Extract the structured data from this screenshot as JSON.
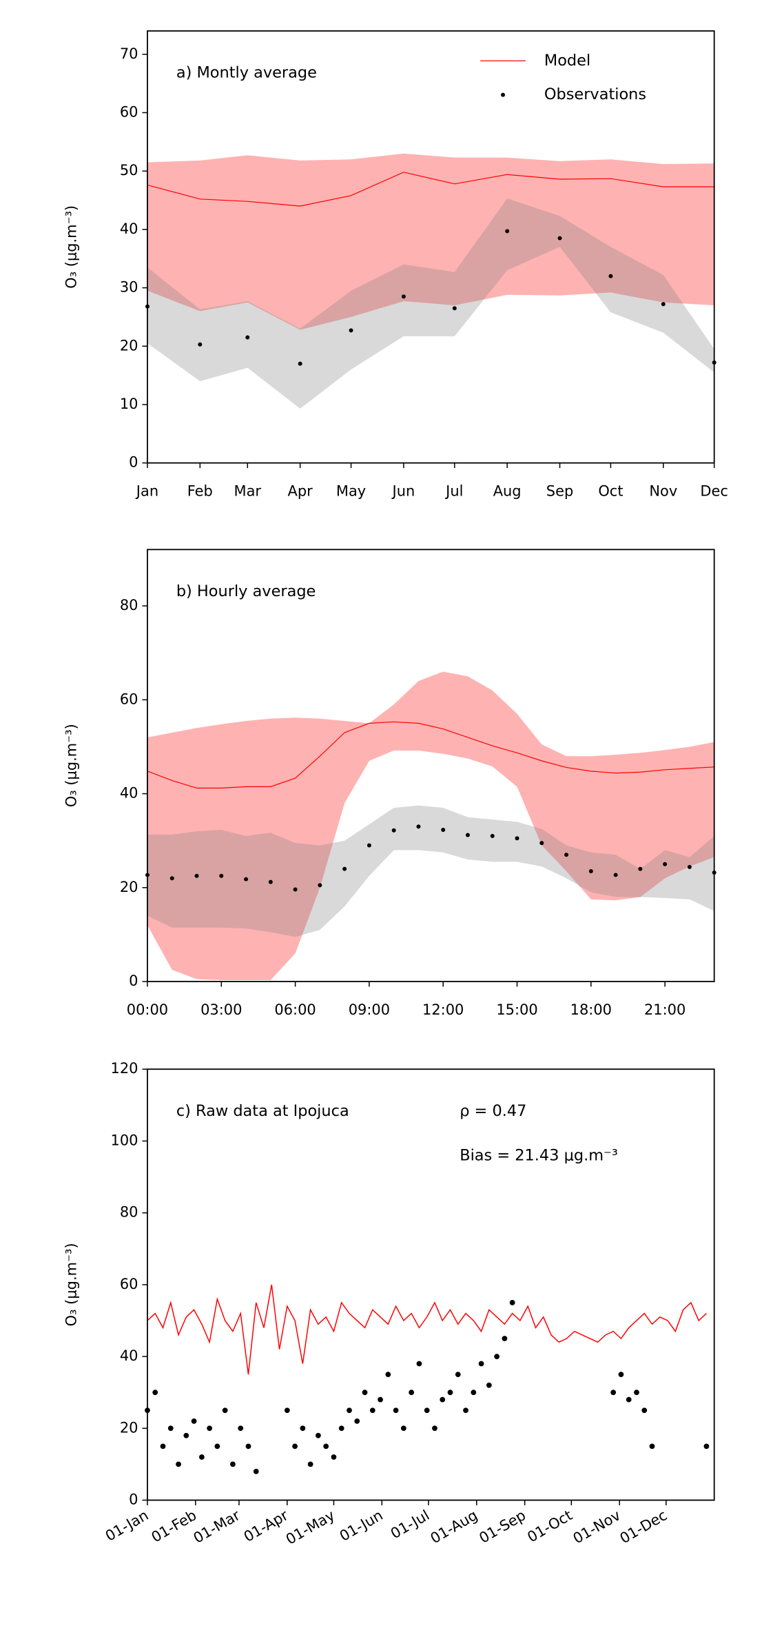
{
  "chart_data": [
    {
      "type": "line",
      "annotation": "a) Montly average",
      "ylabel": "O₃ (μg.m⁻³)",
      "categories": [
        "Jan",
        "Feb",
        "Mar",
        "Apr",
        "May",
        "Jun",
        "Jul",
        "Aug",
        "Sep",
        "Oct",
        "Nov",
        "Dec"
      ],
      "ylim": [
        0,
        74
      ],
      "yticks": [
        0,
        10,
        20,
        30,
        40,
        50,
        60,
        70
      ],
      "legend": "upper right",
      "series": [
        {
          "name": "Model",
          "type": "line",
          "color": "#ff0000",
          "band_color": "#ff0000",
          "values": [
            47.6,
            45.2,
            44.8,
            44.0,
            45.8,
            49.8,
            47.8,
            49.4,
            48.6,
            48.7,
            47.3,
            47.3
          ],
          "upper": [
            51.5,
            51.8,
            52.7,
            51.8,
            52.0,
            53.0,
            52.3,
            52.3,
            51.7,
            52.0,
            51.2,
            51.3
          ],
          "lower": [
            29.5,
            26.0,
            27.5,
            22.8,
            25.0,
            27.7,
            27.0,
            28.8,
            28.7,
            29.2,
            27.5,
            27.0
          ]
        },
        {
          "name": "Observations",
          "type": "scatter",
          "color": "#000000",
          "band_color": "#808080",
          "values": [
            26.8,
            20.3,
            21.5,
            17.0,
            22.7,
            28.5,
            26.5,
            39.7,
            38.5,
            32.0,
            27.2,
            17.2
          ],
          "upper": [
            33.5,
            26.3,
            27.7,
            23.0,
            29.5,
            34.0,
            32.7,
            45.3,
            42.3,
            37.0,
            32.2,
            19.5
          ],
          "lower": [
            20.5,
            14.0,
            16.3,
            9.3,
            16.0,
            21.7,
            21.7,
            33.0,
            37.0,
            25.8,
            22.3,
            15.5
          ]
        }
      ]
    },
    {
      "type": "line",
      "annotation": "b) Hourly average",
      "ylabel": "O₃ (μg.m⁻³)",
      "x": [
        0,
        1,
        2,
        3,
        4,
        5,
        6,
        7,
        8,
        9,
        10,
        11,
        12,
        13,
        14,
        15,
        16,
        17,
        18,
        19,
        20,
        21,
        22,
        23
      ],
      "xlim": [
        0,
        23
      ],
      "xticks": [
        {
          "value": 0,
          "label": "00:00"
        },
        {
          "value": 3,
          "label": "03:00"
        },
        {
          "value": 6,
          "label": "06:00"
        },
        {
          "value": 9,
          "label": "09:00"
        },
        {
          "value": 12,
          "label": "12:00"
        },
        {
          "value": 15,
          "label": "15:00"
        },
        {
          "value": 18,
          "label": "18:00"
        },
        {
          "value": 21,
          "label": "21:00"
        }
      ],
      "ylim": [
        0,
        92
      ],
      "yticks": [
        0,
        20,
        40,
        60,
        80
      ],
      "series": [
        {
          "name": "Model",
          "type": "line",
          "color": "#ff0000",
          "band_color": "#ff0000",
          "values": [
            44.8,
            42.8,
            41.2,
            41.2,
            41.5,
            41.5,
            43.3,
            48,
            53,
            55,
            55.3,
            55,
            53.8,
            52,
            50.2,
            48.7,
            47,
            45.6,
            44.8,
            44.4,
            44.6,
            45.1,
            45.4,
            45.7
          ],
          "upper": [
            52,
            53,
            54,
            54.8,
            55.5,
            56,
            56.2,
            56,
            55.5,
            55,
            59,
            64,
            66,
            65,
            62,
            57,
            50.5,
            48,
            48,
            48.3,
            48.7,
            49.3,
            50,
            51
          ],
          "lower": [
            12,
            2.5,
            0.5,
            0.3,
            0.3,
            0.3,
            6,
            20,
            38,
            47,
            49.2,
            49.2,
            48.5,
            47.5,
            45.8,
            41.5,
            29,
            23.5,
            17.5,
            17.3,
            18,
            22,
            24.5,
            26.5
          ]
        },
        {
          "name": "Observations",
          "type": "scatter",
          "color": "#000000",
          "band_color": "#808080",
          "values": [
            22.7,
            22.0,
            22.5,
            22.5,
            21.8,
            21.2,
            19.6,
            20.5,
            24.0,
            29.0,
            32.2,
            33.0,
            32.3,
            31.2,
            31.0,
            30.5,
            29.5,
            27.0,
            23.5,
            22.7,
            24.0,
            25.0,
            24.4,
            23.2
          ],
          "upper": [
            31.3,
            31.3,
            32,
            32.3,
            31,
            31.7,
            29.5,
            29,
            30,
            33.5,
            37,
            37.5,
            37,
            35,
            34.5,
            34,
            32.5,
            29,
            27.5,
            27,
            24,
            28,
            26.5,
            31
          ],
          "lower": [
            14,
            11.5,
            11.5,
            11.5,
            11.3,
            10.5,
            9.5,
            11,
            16,
            22.5,
            28,
            28,
            27.5,
            26,
            25.5,
            25.5,
            24.5,
            22,
            19,
            18,
            18,
            17.8,
            17.5,
            15
          ]
        }
      ]
    },
    {
      "type": "line",
      "annotation": "c) Raw data at Ipojuca",
      "stats": [
        "ρ = 0.47",
        "Bias = 21.43 μg.m⁻³"
      ],
      "ylabel": "O₃ (μg.m⁻³)",
      "x": [
        0,
        5,
        10,
        15,
        20,
        25,
        30,
        35,
        40,
        45,
        50,
        55,
        60,
        65,
        70,
        75,
        80,
        85,
        90,
        95,
        100,
        105,
        110,
        115,
        120,
        125,
        130,
        135,
        140,
        145,
        150,
        155,
        160,
        165,
        170,
        175,
        180,
        185,
        190,
        195,
        200,
        205,
        210,
        215,
        220,
        225,
        230,
        235,
        240,
        245,
        250,
        255,
        260,
        265,
        270,
        275,
        280,
        285,
        290,
        295,
        300,
        305,
        310,
        315,
        320,
        325,
        330,
        335,
        340,
        345,
        350,
        355,
        360
      ],
      "xlim": [
        0,
        365
      ],
      "xticks": [
        {
          "value": 0,
          "label": "01-Jan"
        },
        {
          "value": 31,
          "label": "01-Feb"
        },
        {
          "value": 59,
          "label": "01-Mar"
        },
        {
          "value": 90,
          "label": "01-Apr"
        },
        {
          "value": 120,
          "label": "01-May"
        },
        {
          "value": 151,
          "label": "01-Jun"
        },
        {
          "value": 181,
          "label": "01-Jul"
        },
        {
          "value": 212,
          "label": "01-Aug"
        },
        {
          "value": 243,
          "label": "01-Sep"
        },
        {
          "value": 273,
          "label": "01-Oct"
        },
        {
          "value": 304,
          "label": "01-Nov"
        },
        {
          "value": 334,
          "label": "01-Dec"
        }
      ],
      "ylim": [
        0,
        120
      ],
      "yticks": [
        0,
        20,
        40,
        60,
        80,
        100,
        120
      ],
      "series": [
        {
          "type": "line",
          "color": "#ff0000",
          "values": [
            50,
            52,
            48,
            55,
            46,
            51,
            53,
            49,
            44,
            56,
            50,
            47,
            52,
            35,
            55,
            48,
            60,
            42,
            54,
            50,
            38,
            53,
            49,
            51,
            47,
            55,
            52,
            50,
            48,
            53,
            51,
            49,
            54,
            50,
            52,
            48,
            51,
            55,
            50,
            53,
            49,
            52,
            50,
            47,
            53,
            51,
            49,
            52,
            50,
            54,
            48,
            51,
            46,
            44,
            45,
            47,
            46,
            45,
            44,
            46,
            47,
            45,
            48,
            50,
            52,
            49,
            51,
            50,
            47,
            53,
            55,
            50,
            52
          ]
        },
        {
          "type": "scatter",
          "color": "#000000",
          "values": [
            25,
            30,
            15,
            20,
            10,
            18,
            22,
            12,
            20,
            15,
            25,
            10,
            20,
            15,
            8,
            null,
            null,
            null,
            25,
            15,
            20,
            10,
            18,
            15,
            12,
            20,
            25,
            22,
            30,
            25,
            28,
            35,
            25,
            20,
            30,
            38,
            25,
            20,
            28,
            30,
            35,
            25,
            30,
            38,
            32,
            40,
            45,
            55,
            null,
            null,
            null,
            null,
            null,
            null,
            null,
            null,
            null,
            null,
            null,
            null,
            30,
            35,
            28,
            30,
            25,
            15,
            null,
            null,
            null,
            null,
            null,
            null,
            15
          ]
        }
      ]
    }
  ]
}
